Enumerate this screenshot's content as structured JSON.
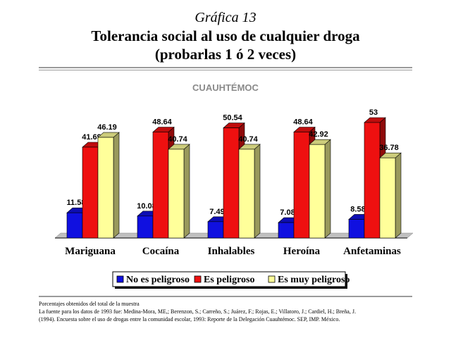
{
  "header": {
    "kicker": "Gráfica 13",
    "title_line1": "Tolerancia social al uso de cualquier droga",
    "title_line2": "(probarlas 1 ó 2 veces)"
  },
  "chart_data": {
    "type": "bar",
    "subtitle": "CUAUHTÉMOC",
    "categories": [
      "Mariguana",
      "Cocaína",
      "Inhalables",
      "Heroína",
      "Anfetaminas"
    ],
    "series": [
      {
        "name": "No es peligroso",
        "color": "#1010e0",
        "values": [
          11.58,
          10.08,
          7.49,
          7.08,
          8.58
        ]
      },
      {
        "name": "Es peligroso",
        "color": "#ee1010",
        "values": [
          41.69,
          48.64,
          50.54,
          48.64,
          53
        ]
      },
      {
        "name": "Es muy peligroso",
        "color": "#ffff9a",
        "values": [
          46.19,
          40.74,
          40.74,
          42.92,
          36.78
        ]
      }
    ],
    "value_labels": [
      [
        "11.58",
        "10.08",
        "7.49",
        "7.08",
        "8.58"
      ],
      [
        "41.69",
        "48.64",
        "50.54",
        "48.64",
        "53"
      ],
      [
        "46.19",
        "40.74",
        "40.74",
        "42.92",
        "36.78"
      ]
    ],
    "ylim": [
      0,
      53
    ],
    "grid": false,
    "legend_position": "bottom"
  },
  "notes": {
    "line1": "Porcentajes obtenidos del total de la muestra",
    "line2": "La fuente para los datos de 1993 fue: Medina-Mora, ME,; Berenzon, S.; Carreño, S.; Juárez, F.; Rojas, E.; Villatoro, J.; Cardiel, H.; Breña, J.",
    "line3": "(1994). Encuesta sobre el uso de drogas entre la comunidad escolar, 1993: Reporte de la Delegación Cuauhtémoc. SEP, IMP. México."
  }
}
